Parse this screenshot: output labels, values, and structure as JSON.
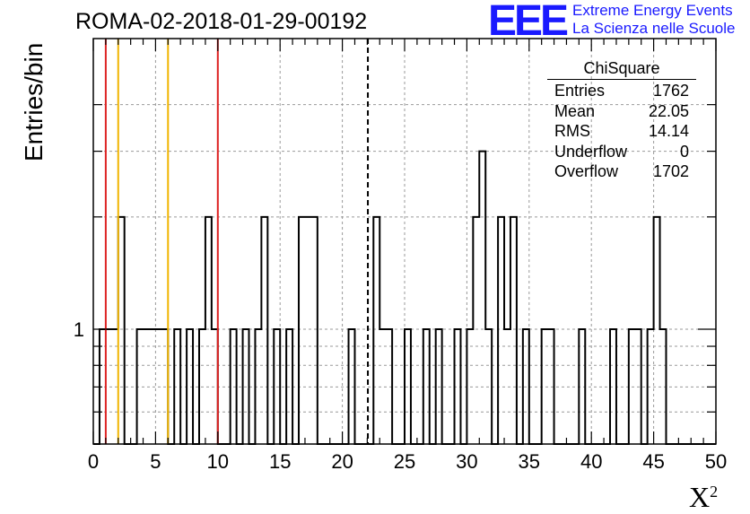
{
  "colors": {
    "red": "#dd2222",
    "orange": "#f0b400",
    "logo": "#1a1aff"
  },
  "logo": {
    "mark": "EEE",
    "line1": "Extreme Energy Events",
    "line2": "La Scienza nelle Scuole"
  },
  "stats": {
    "title": "ChiSquare",
    "rows": [
      {
        "label": "Entries",
        "value": "1762"
      },
      {
        "label": "Mean",
        "value": "22.05"
      },
      {
        "label": "RMS",
        "value": "14.14"
      },
      {
        "label": "Underflow",
        "value": "0"
      },
      {
        "label": "Overflow",
        "value": "1702"
      }
    ]
  },
  "chart_data": {
    "type": "bar",
    "title": "ROMA-02-2018-01-29-00192",
    "xlabel": "X",
    "xlabel_sup": "2",
    "ylabel": "Entries/bin",
    "xlim": [
      0,
      50
    ],
    "ylog": true,
    "grid": true,
    "bin_width": 0.5,
    "x_ticks": [
      "0",
      "5",
      "10",
      "15",
      "20",
      "25",
      "30",
      "35",
      "40",
      "45",
      "50"
    ],
    "y_tick_labels": [
      {
        "value": 1,
        "label": "1"
      }
    ],
    "bins": [
      {
        "x": 0.5,
        "y": 1
      },
      {
        "x": 1.0,
        "y": 1
      },
      {
        "x": 1.5,
        "y": 1
      },
      {
        "x": 2.0,
        "y": 2
      },
      {
        "x": 3.5,
        "y": 1
      },
      {
        "x": 4.0,
        "y": 1
      },
      {
        "x": 4.5,
        "y": 1
      },
      {
        "x": 5.0,
        "y": 1
      },
      {
        "x": 5.5,
        "y": 1
      },
      {
        "x": 6.5,
        "y": 1
      },
      {
        "x": 7.5,
        "y": 1
      },
      {
        "x": 8.5,
        "y": 1
      },
      {
        "x": 9.0,
        "y": 2
      },
      {
        "x": 9.5,
        "y": 1
      },
      {
        "x": 11.0,
        "y": 1
      },
      {
        "x": 12.0,
        "y": 1
      },
      {
        "x": 13.0,
        "y": 1
      },
      {
        "x": 13.5,
        "y": 2
      },
      {
        "x": 14.5,
        "y": 1
      },
      {
        "x": 15.5,
        "y": 1
      },
      {
        "x": 16.5,
        "y": 2
      },
      {
        "x": 17.0,
        "y": 2
      },
      {
        "x": 17.5,
        "y": 2
      },
      {
        "x": 20.5,
        "y": 1
      },
      {
        "x": 22.5,
        "y": 2
      },
      {
        "x": 23.0,
        "y": 1
      },
      {
        "x": 23.5,
        "y": 1
      },
      {
        "x": 25.0,
        "y": 1
      },
      {
        "x": 26.5,
        "y": 1
      },
      {
        "x": 27.5,
        "y": 1
      },
      {
        "x": 29.0,
        "y": 1
      },
      {
        "x": 30.0,
        "y": 1
      },
      {
        "x": 30.5,
        "y": 2
      },
      {
        "x": 31.0,
        "y": 3
      },
      {
        "x": 31.5,
        "y": 1
      },
      {
        "x": 32.5,
        "y": 2
      },
      {
        "x": 33.0,
        "y": 1
      },
      {
        "x": 33.5,
        "y": 2
      },
      {
        "x": 34.5,
        "y": 1
      },
      {
        "x": 36.0,
        "y": 1
      },
      {
        "x": 36.5,
        "y": 1
      },
      {
        "x": 39.0,
        "y": 1
      },
      {
        "x": 41.5,
        "y": 1
      },
      {
        "x": 43.0,
        "y": 1
      },
      {
        "x": 43.5,
        "y": 1
      },
      {
        "x": 44.5,
        "y": 1
      },
      {
        "x": 45.0,
        "y": 2
      },
      {
        "x": 45.5,
        "y": 1
      }
    ],
    "reference_lines": [
      {
        "x": 1.0,
        "color": "red",
        "style": "solid"
      },
      {
        "x": 2.0,
        "color": "orange",
        "style": "solid"
      },
      {
        "x": 6.0,
        "color": "orange",
        "style": "solid"
      },
      {
        "x": 10.0,
        "color": "red",
        "style": "solid"
      },
      {
        "x": 22.05,
        "color": "black",
        "style": "dashed"
      }
    ]
  }
}
